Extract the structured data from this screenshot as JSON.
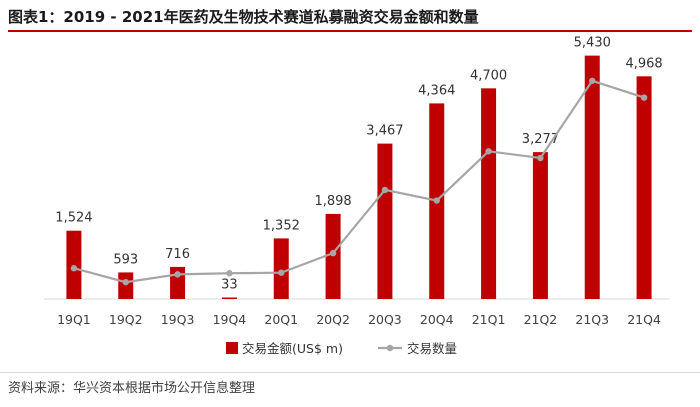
{
  "title": "图表1：2019 - 2021年医药及生物技术赛道私募融资交易金额和数量",
  "source": "资料来源：华兴资本根据市场公开信息整理",
  "colors": {
    "bar": "#c00000",
    "line": "#a6a6a6",
    "accent": "#c00000"
  },
  "chart_data": {
    "type": "bar",
    "categories": [
      "19Q1",
      "19Q2",
      "19Q3",
      "19Q4",
      "20Q1",
      "20Q2",
      "20Q3",
      "20Q4",
      "21Q1",
      "21Q2",
      "21Q3",
      "21Q4"
    ],
    "series": [
      {
        "name": "交易金额(US$ m)",
        "type": "bar",
        "values": [
          1524,
          593,
          716,
          33,
          1352,
          1898,
          3467,
          4364,
          4700,
          3277,
          5430,
          4968
        ],
        "labels": [
          "1,524",
          "593",
          "716",
          "33",
          "1,352",
          "1,898",
          "3,467",
          "4,364",
          "4,700",
          "3,277",
          "5,430",
          "4,968"
        ]
      },
      {
        "name": "交易数量",
        "type": "line",
        "values": [
          55,
          30,
          44,
          46,
          47,
          82,
          195,
          176,
          264,
          252,
          390,
          360
        ]
      }
    ],
    "ylim": [
      0,
      6000
    ],
    "legend": "bottom",
    "grid": false
  }
}
